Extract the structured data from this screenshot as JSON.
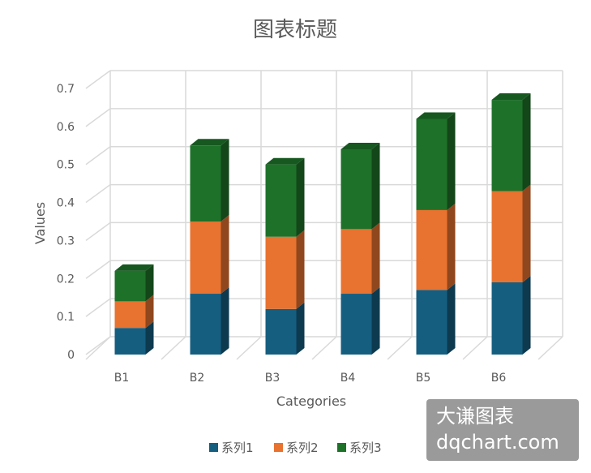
{
  "chart_data": {
    "type": "bar",
    "stacked": true,
    "three_d": true,
    "title": "图表标题",
    "xlabel": "Categories",
    "ylabel": "Values",
    "categories": [
      "B1",
      "B2",
      "B3",
      "B4",
      "B5",
      "B6"
    ],
    "ylim": [
      0,
      0.7
    ],
    "yticks": [
      "0",
      "0.1",
      "0.2",
      "0.3",
      "0.4",
      "0.5",
      "0.6",
      "0.7"
    ],
    "grid": true,
    "legend": "bottom",
    "series": [
      {
        "name": "系列1",
        "color": "#155E80",
        "values": [
          0.07,
          0.16,
          0.12,
          0.16,
          0.17,
          0.19
        ]
      },
      {
        "name": "系列2",
        "color": "#E8722F",
        "values": [
          0.07,
          0.19,
          0.19,
          0.17,
          0.21,
          0.24
        ]
      },
      {
        "name": "系列3",
        "color": "#1E7129",
        "values": [
          0.08,
          0.2,
          0.19,
          0.21,
          0.24,
          0.24
        ]
      }
    ]
  },
  "watermark": {
    "line1": "大谦图表",
    "line2": "dqchart.com"
  }
}
